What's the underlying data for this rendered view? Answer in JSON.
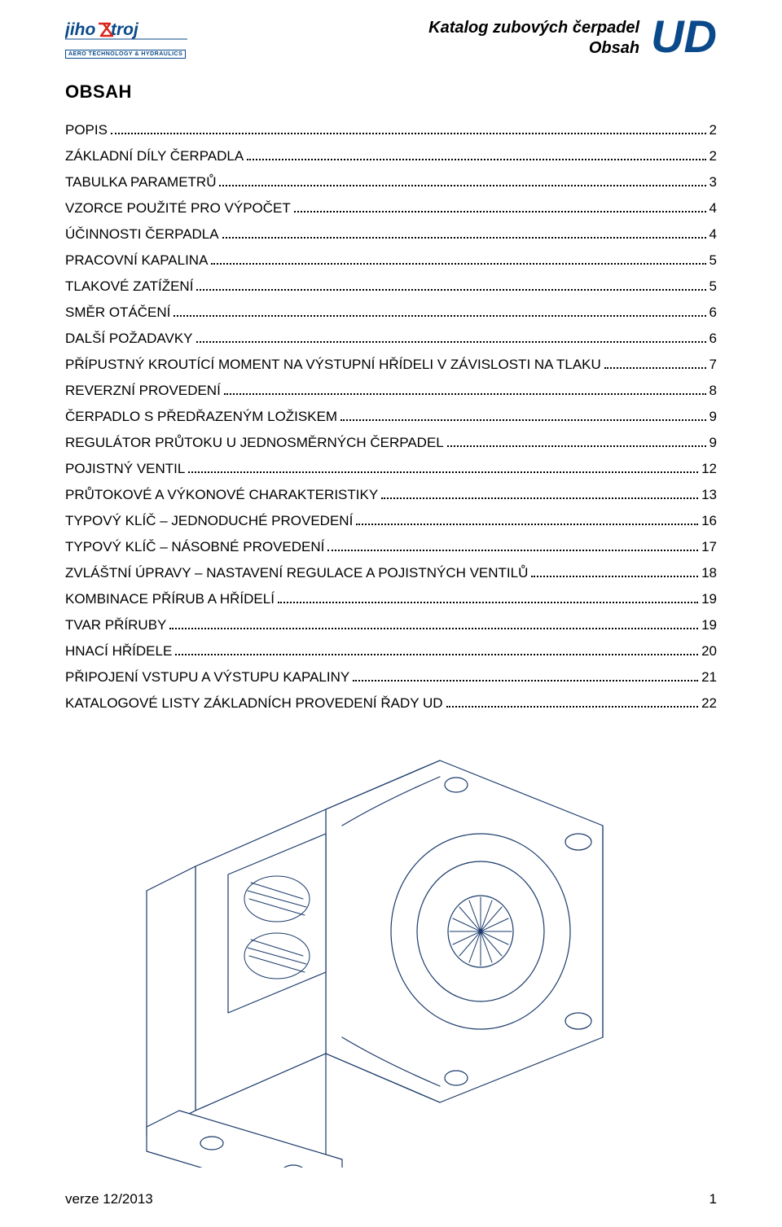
{
  "header": {
    "logo_main": "jihostroj",
    "logo_sub": "AERO TECHNOLOGY & HYDRAULICS",
    "catalog_line1": "Katalog zubových čerpadel",
    "catalog_line2": "Obsah",
    "code": "UD",
    "logo_color": "#0a4a8a",
    "logo_accent": "#d9261c"
  },
  "title": "OBSAH",
  "toc": [
    {
      "label": "POPIS",
      "page": "2"
    },
    {
      "label": "ZÁKLADNÍ DÍLY ČERPADLA",
      "page": "2"
    },
    {
      "label": "TABULKA PARAMETRŮ",
      "page": "3"
    },
    {
      "label": "VZORCE POUŽITÉ PRO VÝPOČET",
      "page": "4"
    },
    {
      "label": "ÚČINNOSTI ČERPADLA",
      "page": "4"
    },
    {
      "label": "PRACOVNÍ KAPALINA",
      "page": "5"
    },
    {
      "label": "TLAKOVÉ ZATÍŽENÍ",
      "page": "5"
    },
    {
      "label": "SMĚR OTÁČENÍ",
      "page": "6"
    },
    {
      "label": "DALŠÍ POŽADAVKY",
      "page": "6"
    },
    {
      "label": "PŘÍPUSTNÝ KROUTÍCÍ MOMENT NA VÝSTUPNÍ HŘÍDELI V ZÁVISLOSTI NA TLAKU",
      "page": "7"
    },
    {
      "label": "REVERZNÍ PROVEDENÍ",
      "page": "8"
    },
    {
      "label": "ČERPADLO S PŘEDŘAZENÝM LOŽISKEM",
      "page": "9"
    },
    {
      "label": "REGULÁTOR PRŮTOKU U JEDNOSMĚRNÝCH ČERPADEL",
      "page": "9"
    },
    {
      "label": "POJISTNÝ VENTIL",
      "page": "12"
    },
    {
      "label": "PRŮTOKOVÉ A VÝKONOVÉ CHARAKTERISTIKY",
      "page": "13"
    },
    {
      "label": "TYPOVÝ KLÍČ – JEDNODUCHÉ PROVEDENÍ",
      "page": "16"
    },
    {
      "label": "TYPOVÝ KLÍČ – NÁSOBNÉ PROVEDENÍ",
      "page": "17"
    },
    {
      "label": "ZVLÁŠTNÍ ÚPRAVY – NASTAVENÍ REGULACE A POJISTNÝCH VENTILŮ",
      "page": "18"
    },
    {
      "label": "KOMBINACE PŘÍRUB A HŘÍDELÍ",
      "page": "19"
    },
    {
      "label": "TVAR PŘÍRUBY",
      "page": "19"
    },
    {
      "label": "HNACÍ HŘÍDELE",
      "page": "20"
    },
    {
      "label": "PŘIPOJENÍ VSTUPU A VÝSTUPU KAPALINY",
      "page": "21"
    },
    {
      "label": "KATALOGOVÉ LISTY ZÁKLADNÍCH PROVEDENÍ ŘADY UD",
      "page": "22"
    }
  ],
  "illustration": {
    "stroke": "#1a3a6a",
    "stroke_width": 1.2,
    "fill": "#ffffff"
  },
  "footer": {
    "version": "verze 12/2013",
    "page_number": "1"
  }
}
